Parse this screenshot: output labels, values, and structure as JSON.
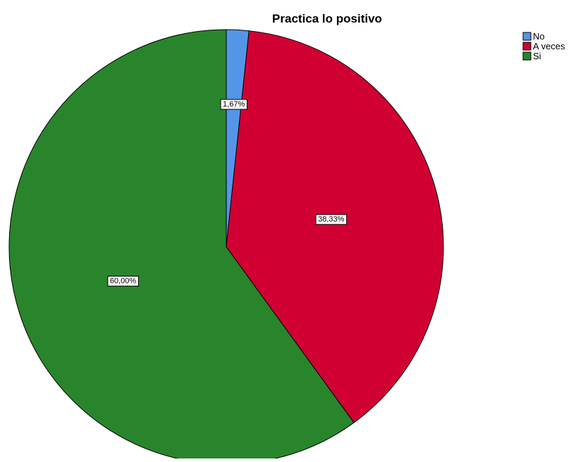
{
  "chart_data": {
    "type": "pie",
    "title": "Practica lo positivo",
    "slices": [
      {
        "label": "No",
        "value": 1.67,
        "display": "1,67%",
        "color": "#5595e8"
      },
      {
        "label": "A veces",
        "value": 38.33,
        "display": "38,33%",
        "color": "#d10032"
      },
      {
        "label": "Si",
        "value": 60.0,
        "display": "60,00%",
        "color": "#29852b"
      }
    ],
    "start": "12 o'clock",
    "direction": "clockwise",
    "legend_position": "top-right"
  }
}
